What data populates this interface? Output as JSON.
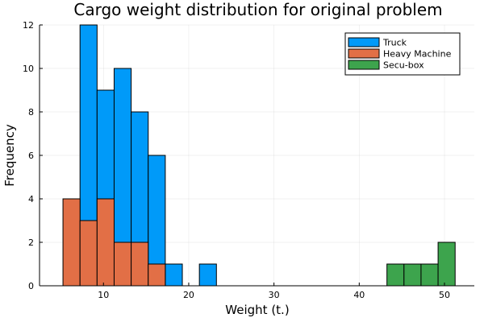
{
  "chart_data": {
    "type": "bar",
    "title": "Cargo weight distribution for original problem",
    "xlabel": "Weight (t.)",
    "ylabel": "Frequency",
    "xlim": [
      2.5,
      53.5
    ],
    "ylim": [
      0,
      12
    ],
    "xticks": [
      10,
      20,
      30,
      40,
      50
    ],
    "yticks": [
      0,
      2,
      4,
      6,
      8,
      10,
      12
    ],
    "grid": true,
    "legend_position": "top-right",
    "series": [
      {
        "name": "Truck",
        "color": "#009af9",
        "bins": [
          {
            "x0": 7.25,
            "x1": 9.25,
            "count": 12
          },
          {
            "x0": 9.25,
            "x1": 11.25,
            "count": 9
          },
          {
            "x0": 11.25,
            "x1": 13.25,
            "count": 10
          },
          {
            "x0": 13.25,
            "x1": 15.25,
            "count": 8
          },
          {
            "x0": 15.25,
            "x1": 17.25,
            "count": 6
          },
          {
            "x0": 17.25,
            "x1": 19.25,
            "count": 1
          },
          {
            "x0": 21.25,
            "x1": 23.25,
            "count": 1
          }
        ]
      },
      {
        "name": "Heavy Machine",
        "color": "#e26f46",
        "bins": [
          {
            "x0": 5.25,
            "x1": 7.25,
            "count": 4
          },
          {
            "x0": 7.25,
            "x1": 9.25,
            "count": 3
          },
          {
            "x0": 9.25,
            "x1": 11.25,
            "count": 4
          },
          {
            "x0": 11.25,
            "x1": 13.25,
            "count": 2
          },
          {
            "x0": 13.25,
            "x1": 15.25,
            "count": 2
          },
          {
            "x0": 15.25,
            "x1": 17.25,
            "count": 1
          }
        ]
      },
      {
        "name": "Secu-box",
        "color": "#3da44d",
        "bins": [
          {
            "x0": 43.25,
            "x1": 45.25,
            "count": 1
          },
          {
            "x0": 45.25,
            "x1": 47.25,
            "count": 1
          },
          {
            "x0": 47.25,
            "x1": 49.25,
            "count": 1
          },
          {
            "x0": 49.25,
            "x1": 51.25,
            "count": 2
          }
        ]
      }
    ]
  }
}
